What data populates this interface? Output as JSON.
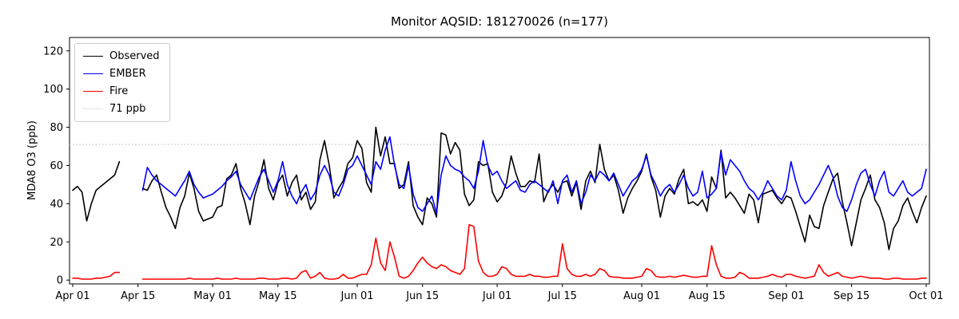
{
  "chart_data": {
    "type": "line",
    "title": "Monitor AQSID: 181270026 (n=177)",
    "xlabel": "",
    "ylabel": "MDA8 O3 (ppb)",
    "ylim": [
      -2,
      127
    ],
    "y_ticks": [
      0,
      20,
      40,
      60,
      80,
      100,
      120
    ],
    "x_ticks": [
      "Apr 01",
      "Apr 15",
      "May 01",
      "May 15",
      "Jun 01",
      "Jun 15",
      "Jul 01",
      "Jul 15",
      "Aug 01",
      "Aug 15",
      "Sep 01",
      "Sep 15",
      "Oct 01"
    ],
    "x_start": "Apr 01",
    "n_days": 184,
    "x_unit": "daily values, day index 0 = Apr 01",
    "grid": false,
    "legend_position": "upper left",
    "threshold": {
      "value": 71,
      "label": "71 ppb",
      "color": "#c9c9c9",
      "linestyle": "dotted"
    },
    "series": [
      {
        "name": "Observed",
        "color": "#000000",
        "values": [
          47,
          49,
          46,
          31,
          40,
          47,
          49,
          51,
          53,
          55,
          62,
          null,
          null,
          null,
          null,
          48,
          47,
          52,
          55,
          46,
          38,
          33,
          27,
          38,
          44,
          56,
          48,
          36,
          31,
          32,
          33,
          38,
          39,
          53,
          55,
          61,
          48,
          40,
          29,
          44,
          52,
          63,
          48,
          42,
          51,
          55,
          44,
          51,
          55,
          42,
          46,
          37,
          41,
          63,
          73,
          60,
          43,
          48,
          52,
          61,
          64,
          73,
          69,
          51,
          46,
          80,
          65,
          75,
          61,
          61,
          48,
          50,
          62,
          39,
          33,
          29,
          43,
          40,
          33,
          77,
          76,
          66,
          72,
          68,
          45,
          39,
          42,
          62,
          60,
          61,
          46,
          41,
          44,
          51,
          65,
          56,
          49,
          49,
          52,
          51,
          66,
          41,
          47,
          50,
          46,
          51,
          52,
          44,
          51,
          37,
          52,
          57,
          51,
          71,
          58,
          52,
          55,
          47,
          35,
          43,
          48,
          52,
          57,
          66,
          54,
          47,
          33,
          44,
          48,
          45,
          53,
          58,
          40,
          41,
          39,
          42,
          36,
          54,
          48,
          68,
          43,
          46,
          43,
          39,
          35,
          45,
          42,
          30,
          45,
          46,
          47,
          43,
          40,
          44,
          43,
          36,
          28,
          20,
          34,
          28,
          27,
          39,
          46,
          53,
          56,
          41,
          30,
          18,
          30,
          42,
          48,
          55,
          42,
          38,
          30,
          16,
          27,
          31,
          39,
          43,
          36,
          30,
          38,
          44
        ]
      },
      {
        "name": "EMBER",
        "color": "#0000ff",
        "values": [
          null,
          null,
          null,
          null,
          null,
          null,
          null,
          null,
          null,
          null,
          null,
          null,
          null,
          null,
          null,
          47,
          59,
          55,
          52,
          50,
          48,
          46,
          44,
          48,
          52,
          57,
          50,
          46,
          43,
          44,
          45,
          47,
          49,
          52,
          54,
          57,
          50,
          46,
          42,
          48,
          54,
          58,
          52,
          46,
          52,
          62,
          50,
          44,
          40,
          46,
          50,
          42,
          46,
          55,
          60,
          55,
          46,
          44,
          50,
          58,
          60,
          65,
          60,
          55,
          50,
          62,
          58,
          68,
          75,
          60,
          50,
          48,
          60,
          45,
          38,
          36,
          40,
          44,
          35,
          55,
          65,
          60,
          58,
          57,
          54,
          52,
          48,
          57,
          73,
          60,
          55,
          57,
          52,
          48,
          50,
          52,
          47,
          46,
          50,
          52,
          50,
          48,
          46,
          52,
          40,
          52,
          55,
          46,
          52,
          40,
          46,
          55,
          52,
          57,
          55,
          52,
          56,
          50,
          44,
          48,
          52,
          54,
          58,
          65,
          55,
          50,
          44,
          48,
          50,
          46,
          50,
          55,
          48,
          44,
          46,
          57,
          43,
          45,
          48,
          67,
          55,
          63,
          60,
          57,
          52,
          48,
          46,
          42,
          46,
          52,
          48,
          44,
          42,
          47,
          62,
          52,
          44,
          40,
          42,
          46,
          50,
          55,
          60,
          54,
          44,
          38,
          36,
          42,
          50,
          56,
          58,
          50,
          44,
          52,
          57,
          46,
          44,
          48,
          52,
          46,
          44,
          46,
          48,
          58
        ]
      },
      {
        "name": "Fire",
        "color": "#ff0000",
        "values": [
          1,
          1,
          0.5,
          0.5,
          0.5,
          1,
          1,
          1.5,
          2,
          4,
          4,
          null,
          null,
          null,
          null,
          0.5,
          0.5,
          0.5,
          0.5,
          0.5,
          0.5,
          0.5,
          0.5,
          0.5,
          0.5,
          1,
          0.5,
          0.5,
          0.5,
          0.5,
          0.5,
          1,
          0.5,
          0.5,
          0.5,
          1,
          0.5,
          0.5,
          0.5,
          0.5,
          1,
          1,
          0.5,
          0.5,
          0.5,
          1,
          1,
          0.5,
          1,
          4,
          5,
          1,
          2,
          4,
          1,
          0.5,
          0.5,
          1,
          3,
          1,
          1,
          2,
          3,
          3,
          8,
          22,
          9,
          5,
          20,
          12,
          2,
          1,
          2,
          5,
          9,
          12,
          9,
          7,
          6,
          8,
          7,
          5,
          4,
          3,
          6,
          29,
          28,
          10,
          4,
          2,
          2,
          3,
          7,
          6,
          3,
          2,
          2,
          2,
          3,
          2,
          2,
          1.5,
          1.5,
          2,
          2,
          19,
          6,
          3,
          2,
          2,
          3,
          2,
          3,
          6,
          5,
          2,
          1.5,
          1.5,
          1,
          1,
          1,
          1.5,
          2,
          6,
          5,
          2,
          1.5,
          1.5,
          2,
          1.5,
          2,
          2.5,
          2,
          1.5,
          1.5,
          2,
          2,
          18,
          8,
          2,
          1,
          1,
          1.5,
          4,
          3,
          1,
          1,
          1,
          1.5,
          2,
          3,
          2,
          1.5,
          3,
          3,
          2,
          1.5,
          1,
          1.5,
          2,
          8,
          4,
          2,
          3,
          4,
          2,
          1.5,
          1,
          1.5,
          2,
          1.5,
          1,
          1,
          1,
          0.5,
          0.5,
          1,
          1,
          0.5,
          0.5,
          0.5,
          0.5,
          1,
          1
        ]
      }
    ]
  }
}
